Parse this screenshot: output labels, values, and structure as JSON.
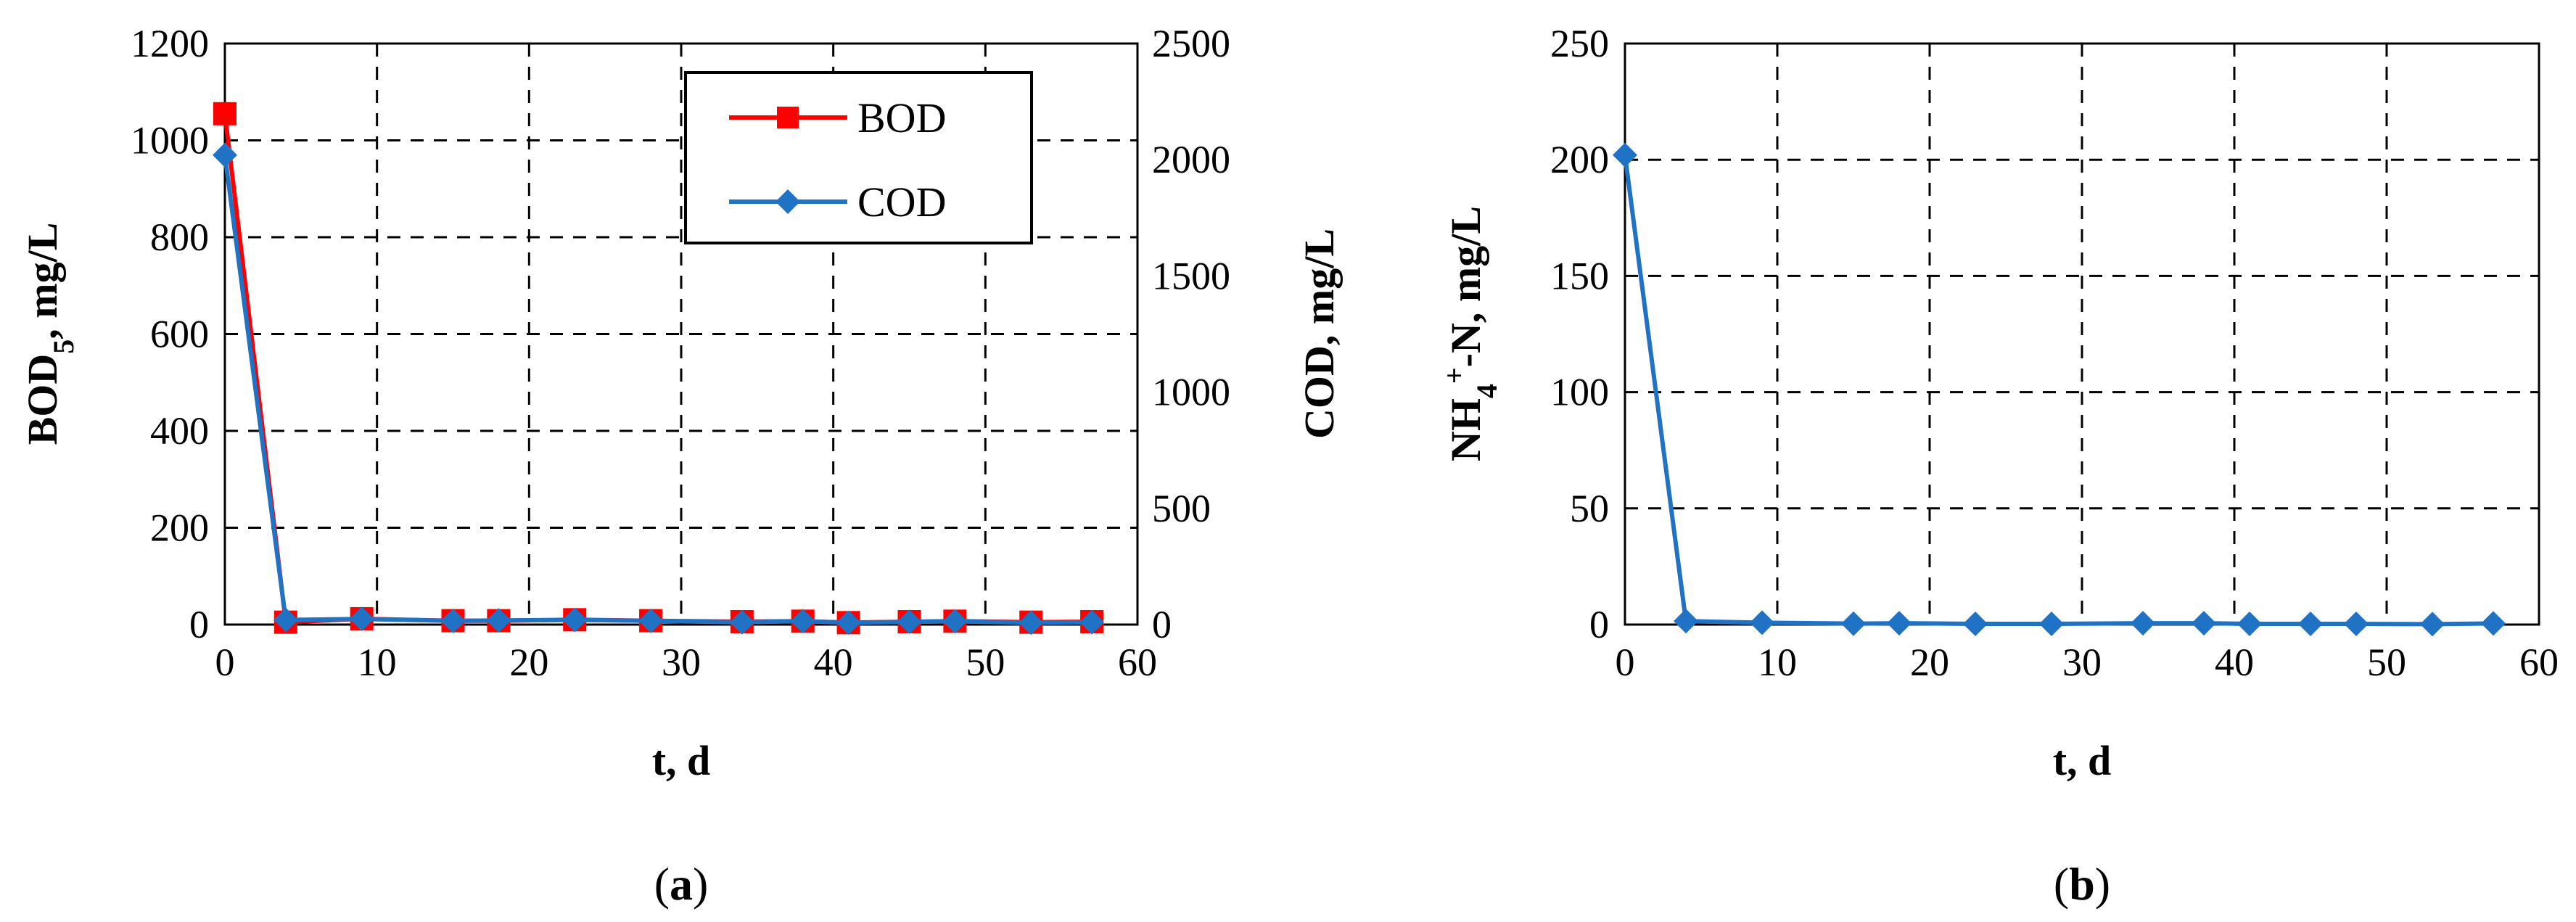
{
  "chart_data": [
    {
      "id": "a",
      "type": "line",
      "caption": "a",
      "xlabel": "t, d",
      "ylabel_left": "BOD5, mg/L",
      "ylabel_right": "COD, mg/L",
      "x_ticks": [
        "0",
        "10",
        "20",
        "30",
        "40",
        "50",
        "60"
      ],
      "y_left_ticks": [
        "0",
        "200",
        "400",
        "600",
        "800",
        "1000",
        "1200"
      ],
      "y_right_ticks": [
        "0",
        "500",
        "1000",
        "1500",
        "2000",
        "2500"
      ],
      "xlim": [
        0,
        60
      ],
      "ylim_left": [
        0,
        1200
      ],
      "ylim_right": [
        0,
        2500
      ],
      "grid": true,
      "legend_position": "top-right",
      "series": [
        {
          "name": "BOD",
          "axis": "left",
          "color": "#ff0000",
          "marker": "square",
          "x": [
            0,
            4,
            9,
            15,
            18,
            23,
            28,
            34,
            38,
            41,
            45,
            48,
            53,
            57
          ],
          "values": [
            1055,
            5,
            12,
            8,
            8,
            10,
            8,
            6,
            7,
            4,
            6,
            7,
            5,
            6
          ]
        },
        {
          "name": "COD",
          "axis": "right",
          "color": "#1f72c4",
          "marker": "diamond",
          "x": [
            0,
            4,
            9,
            15,
            18,
            23,
            28,
            34,
            38,
            41,
            45,
            48,
            53,
            57
          ],
          "values": [
            2020,
            20,
            24,
            16,
            18,
            20,
            16,
            10,
            15,
            8,
            12,
            14,
            8,
            10
          ]
        }
      ]
    },
    {
      "id": "b",
      "type": "line",
      "caption": "b",
      "xlabel": "t, d",
      "ylabel_left": "NH4+-N, mg/L",
      "x_ticks": [
        "0",
        "10",
        "20",
        "30",
        "40",
        "50",
        "60"
      ],
      "y_left_ticks": [
        "0",
        "50",
        "100",
        "150",
        "200",
        "250"
      ],
      "xlim": [
        0,
        60
      ],
      "ylim_left": [
        0,
        250
      ],
      "grid": true,
      "series": [
        {
          "name": "NH4+-N",
          "axis": "left",
          "color": "#1f72c4",
          "marker": "diamond",
          "x": [
            0,
            4,
            9,
            15,
            18,
            23,
            28,
            34,
            38,
            41,
            45,
            48,
            53,
            57
          ],
          "values": [
            202,
            1.5,
            0.8,
            0.4,
            0.6,
            0.3,
            0.3,
            0.6,
            0.6,
            0.3,
            0.3,
            0.3,
            0.2,
            0.5
          ]
        }
      ]
    }
  ]
}
